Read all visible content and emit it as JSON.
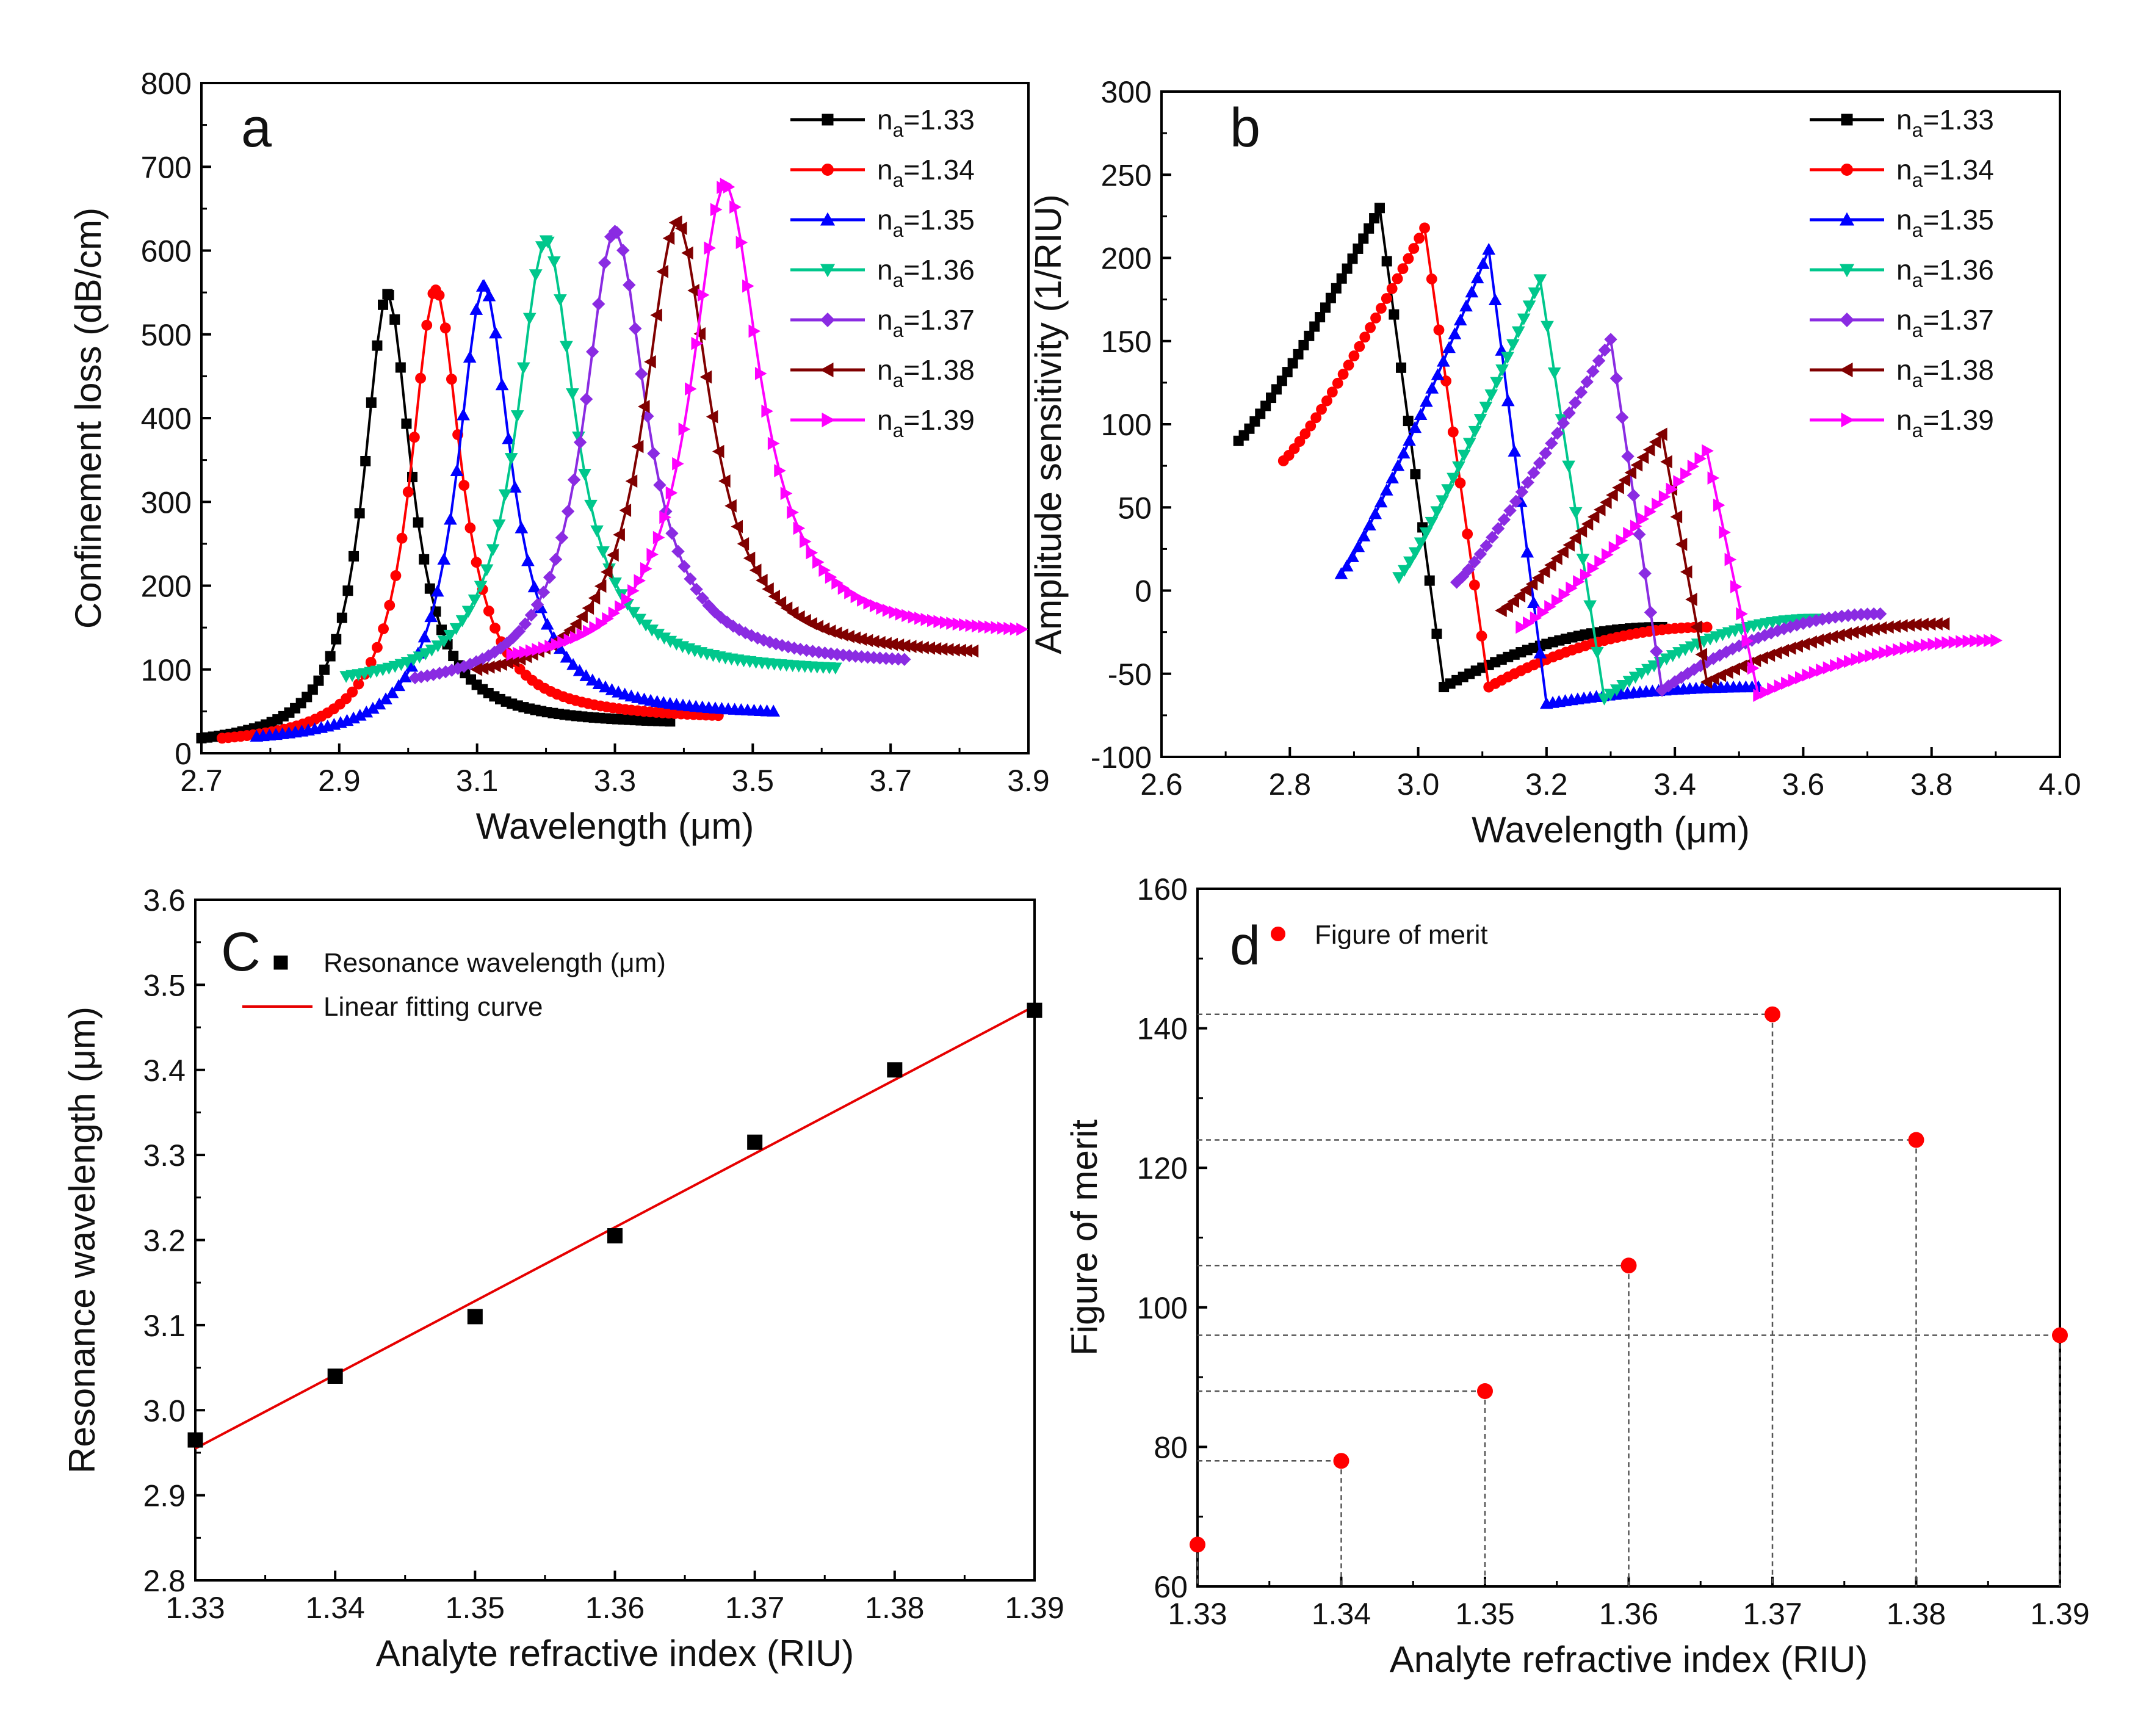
{
  "figure": "Four-panel sensor characterization figure",
  "colors": {
    "n133": "#000000",
    "n134": "#ff0000",
    "n135": "#0000ff",
    "n136": "#00c78c",
    "n137": "#8a2be2",
    "n138": "#800000",
    "n139": "#ff00ff",
    "fit": "#e60000",
    "fom": "#ff0000"
  },
  "icons": {
    "n133": "square-marker",
    "n134": "circle-marker",
    "n135": "up-triangle-marker",
    "n136": "down-triangle-marker",
    "n137": "diamond-marker",
    "n138": "left-triangle-marker",
    "n139": "right-triangle-marker"
  },
  "chart_data": [
    {
      "id": "a",
      "panel_label": "a",
      "type": "line",
      "xlabel": "Wavelength (μm)",
      "ylabel": "Confinement loss (dB/cm)",
      "xlim": [
        2.7,
        3.9
      ],
      "ylim": [
        0,
        800
      ],
      "xticks": [
        "2.7",
        "2.9",
        "3.1",
        "3.3",
        "3.5",
        "3.7",
        "3.9"
      ],
      "yticks": [
        "0",
        "100",
        "200",
        "300",
        "400",
        "500",
        "600",
        "700",
        "800"
      ],
      "series": [
        {
          "name": "n",
          "sub": "a",
          "value": "=1.33",
          "marker": "square",
          "color": "#000000",
          "peak_x": 2.97,
          "peak_y": 548,
          "hwhm": 0.042,
          "start_x": 2.7,
          "end_x": 3.38,
          "start_y": 18,
          "end_y": 38
        },
        {
          "name": "n",
          "sub": "a",
          "value": "=1.34",
          "marker": "circle",
          "color": "#ff0000",
          "peak_x": 3.04,
          "peak_y": 553,
          "hwhm": 0.045,
          "start_x": 2.73,
          "end_x": 3.45,
          "start_y": 18,
          "end_y": 45
        },
        {
          "name": "n",
          "sub": "a",
          "value": "=1.35",
          "marker": "up-triangle",
          "color": "#0000ff",
          "peak_x": 3.11,
          "peak_y": 558,
          "hwhm": 0.048,
          "start_x": 2.78,
          "end_x": 3.53,
          "start_y": 20,
          "end_y": 50
        },
        {
          "name": "n",
          "sub": "a",
          "value": "=1.36",
          "marker": "down-triangle",
          "color": "#00c78c",
          "peak_x": 3.2,
          "peak_y": 612,
          "hwhm": 0.052,
          "start_x": 2.91,
          "end_x": 3.62,
          "start_y": 92,
          "end_y": 102
        },
        {
          "name": "n",
          "sub": "a",
          "value": "=1.37",
          "marker": "diamond",
          "color": "#8a2be2",
          "peak_x": 3.3,
          "peak_y": 623,
          "hwhm": 0.055,
          "start_x": 3.01,
          "end_x": 3.72,
          "start_y": 90,
          "end_y": 112
        },
        {
          "name": "n",
          "sub": "a",
          "value": "=1.38",
          "marker": "left-triangle",
          "color": "#800000",
          "peak_x": 3.39,
          "peak_y": 634,
          "hwhm": 0.058,
          "start_x": 3.1,
          "end_x": 3.82,
          "start_y": 100,
          "end_y": 122
        },
        {
          "name": "n",
          "sub": "a",
          "value": "=1.39",
          "marker": "right-triangle",
          "color": "#ff00ff",
          "peak_x": 3.46,
          "peak_y": 679,
          "hwhm": 0.06,
          "start_x": 3.15,
          "end_x": 3.89,
          "start_y": 118,
          "end_y": 148
        }
      ]
    },
    {
      "id": "b",
      "panel_label": "b",
      "type": "line",
      "xlabel": "Wavelength (μm)",
      "ylabel": "Amplitude sensitivity (1/RIU)",
      "xlim": [
        2.6,
        4.0
      ],
      "ylim": [
        -100,
        300
      ],
      "xticks": [
        "2.6",
        "2.8",
        "3.0",
        "3.2",
        "3.4",
        "3.6",
        "3.8",
        "4.0"
      ],
      "yticks": [
        "-100",
        "-50",
        "0",
        "50",
        "100",
        "150",
        "200",
        "250",
        "300"
      ],
      "series": [
        {
          "name": "n",
          "sub": "a",
          "value": "=1.33",
          "marker": "square",
          "color": "#000000",
          "start_x": 2.72,
          "start_y": 90,
          "peak_x": 2.94,
          "peak_y": 230,
          "min_x": 3.04,
          "min_y": -58,
          "end_x": 3.38,
          "end_y": -22
        },
        {
          "name": "n",
          "sub": "a",
          "value": "=1.34",
          "marker": "circle",
          "color": "#ff0000",
          "start_x": 2.79,
          "start_y": 78,
          "peak_x": 3.01,
          "peak_y": 218,
          "min_x": 3.11,
          "min_y": -58,
          "end_x": 3.45,
          "end_y": -22
        },
        {
          "name": "n",
          "sub": "a",
          "value": "=1.35",
          "marker": "up-triangle",
          "color": "#0000ff",
          "start_x": 2.88,
          "start_y": 10,
          "peak_x": 3.11,
          "peak_y": 205,
          "min_x": 3.2,
          "min_y": -68,
          "end_x": 3.53,
          "end_y": -58
        },
        {
          "name": "n",
          "sub": "a",
          "value": "=1.36",
          "marker": "down-triangle",
          "color": "#00c78c",
          "start_x": 2.97,
          "start_y": 8,
          "peak_x": 3.19,
          "peak_y": 187,
          "min_x": 3.29,
          "min_y": -65,
          "end_x": 3.62,
          "end_y": -17
        },
        {
          "name": "n",
          "sub": "a",
          "value": "=1.37",
          "marker": "diamond",
          "color": "#8a2be2",
          "start_x": 3.06,
          "start_y": 5,
          "peak_x": 3.3,
          "peak_y": 151,
          "min_x": 3.38,
          "min_y": -60,
          "end_x": 3.72,
          "end_y": -14
        },
        {
          "name": "n",
          "sub": "a",
          "value": "=1.38",
          "marker": "left-triangle",
          "color": "#800000",
          "start_x": 3.13,
          "start_y": -12,
          "peak_x": 3.38,
          "peak_y": 94,
          "min_x": 3.45,
          "min_y": -55,
          "end_x": 3.82,
          "end_y": -20
        },
        {
          "name": "n",
          "sub": "a",
          "value": "=1.39",
          "marker": "right-triangle",
          "color": "#ff00ff",
          "start_x": 3.16,
          "start_y": -22,
          "peak_x": 3.45,
          "peak_y": 84,
          "min_x": 3.53,
          "min_y": -63,
          "end_x": 3.9,
          "end_y": -30
        }
      ]
    },
    {
      "id": "c",
      "panel_label": "C",
      "type": "scatter",
      "xlabel": "Analyte refractive index (RIU)",
      "ylabel": "Resonance wavelength (μm)",
      "xlim": [
        1.33,
        1.39
      ],
      "ylim": [
        2.8,
        3.6
      ],
      "xticks": [
        "1.33",
        "1.34",
        "1.35",
        "1.36",
        "1.37",
        "1.38",
        "1.39"
      ],
      "yticks": [
        "2.8",
        "2.9",
        "3.0",
        "3.1",
        "3.2",
        "3.3",
        "3.4",
        "3.5",
        "3.6"
      ],
      "legend": [
        "Resonance wavelength (μm)",
        "Linear fitting curve"
      ],
      "x": [
        1.33,
        1.34,
        1.35,
        1.36,
        1.37,
        1.38,
        1.39
      ],
      "y": [
        2.965,
        3.04,
        3.11,
        3.205,
        3.315,
        3.4,
        3.47
      ],
      "fit": {
        "x": [
          1.33,
          1.39
        ],
        "y": [
          2.955,
          3.475
        ]
      }
    },
    {
      "id": "d",
      "panel_label": "d",
      "type": "scatter",
      "xlabel": "Analyte refractive index (RIU)",
      "ylabel": "Figure of merit",
      "xlim": [
        1.33,
        1.39
      ],
      "ylim": [
        60,
        160
      ],
      "xticks": [
        "1.33",
        "1.34",
        "1.35",
        "1.36",
        "1.37",
        "1.38",
        "1.39"
      ],
      "yticks": [
        "60",
        "80",
        "100",
        "120",
        "140",
        "160"
      ],
      "legend": [
        "Figure of merit"
      ],
      "x": [
        1.33,
        1.34,
        1.35,
        1.36,
        1.37,
        1.38,
        1.39
      ],
      "y": [
        66,
        78,
        88,
        106,
        142,
        124,
        96
      ]
    }
  ]
}
